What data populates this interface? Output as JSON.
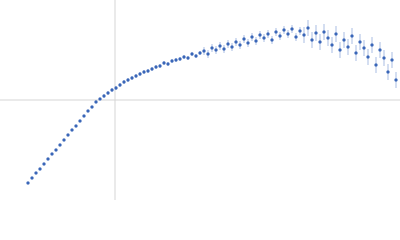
{
  "chart_data": {
    "type": "scatter",
    "color": "#3a66b8",
    "error_color": "#a9bde3",
    "xlim": [
      0,
      400
    ],
    "ylim": [
      0,
      200
    ],
    "grid_x": [
      115
    ],
    "grid_y": [
      100
    ],
    "x": [
      28,
      32,
      36,
      40,
      44,
      48,
      52,
      56,
      60,
      64,
      68,
      72,
      76,
      80,
      84,
      88,
      92,
      96,
      100,
      104,
      108,
      112,
      116,
      120,
      124,
      128,
      132,
      136,
      140,
      144,
      148,
      152,
      156,
      160,
      164,
      168,
      172,
      176,
      180,
      184,
      188,
      192,
      196,
      200,
      204,
      208,
      212,
      216,
      220,
      224,
      228,
      232,
      236,
      240,
      244,
      248,
      252,
      256,
      260,
      264,
      268,
      272,
      276,
      280,
      284,
      288,
      292,
      296,
      300,
      304,
      308,
      312,
      316,
      320,
      324,
      328,
      332,
      336,
      340,
      344,
      348,
      352,
      356,
      360,
      364,
      368,
      372,
      376,
      380,
      384,
      388,
      392,
      396
    ],
    "values": [
      17,
      22,
      27,
      31,
      36,
      41,
      46,
      50,
      55,
      60,
      65,
      70,
      74,
      79,
      84,
      89,
      93,
      98,
      101,
      104,
      107,
      110,
      112,
      115,
      118,
      120,
      122,
      124,
      126,
      128,
      129,
      131,
      133,
      134,
      137,
      136,
      139,
      140,
      141,
      143,
      142,
      146,
      144,
      147,
      149,
      146,
      152,
      150,
      154,
      151,
      156,
      153,
      158,
      155,
      161,
      157,
      163,
      159,
      165,
      162,
      166,
      160,
      168,
      164,
      170,
      166,
      171,
      163,
      169,
      165,
      172,
      160,
      167,
      158,
      168,
      162,
      155,
      166,
      150,
      160,
      153,
      164,
      147,
      158,
      152,
      143,
      155,
      135,
      150,
      142,
      128,
      140,
      120
    ],
    "errors": [
      1,
      1,
      1,
      1,
      1,
      1,
      1,
      1,
      1,
      1,
      1,
      1,
      1,
      1,
      1,
      1,
      1,
      1,
      1,
      2,
      2,
      2,
      2,
      2,
      2,
      2,
      2,
      2,
      2,
      2,
      2,
      2,
      2,
      2,
      2,
      2,
      2,
      2,
      2,
      2,
      2,
      2,
      2,
      2,
      4,
      4,
      4,
      4,
      4,
      4,
      4,
      4,
      4,
      4,
      4,
      4,
      4,
      4,
      4,
      4,
      4,
      4,
      4,
      4,
      4,
      4,
      4,
      4,
      4,
      8,
      8,
      8,
      8,
      8,
      8,
      8,
      8,
      8,
      8,
      8,
      8,
      8,
      8,
      8,
      8,
      8,
      8,
      8,
      8,
      8,
      8,
      8,
      8
    ]
  }
}
